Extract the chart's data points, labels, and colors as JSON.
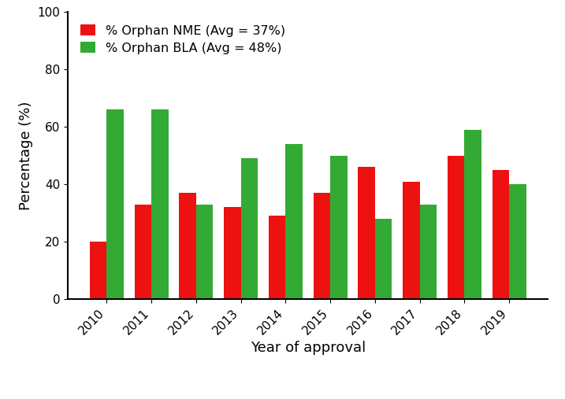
{
  "years": [
    "2010",
    "2011",
    "2012",
    "2013",
    "2014",
    "2015",
    "2016",
    "2017",
    "2018",
    "2019"
  ],
  "nme_values": [
    20,
    33,
    37,
    32,
    29,
    37,
    46,
    41,
    50,
    45
  ],
  "bla_values": [
    66,
    66,
    33,
    49,
    54,
    50,
    28,
    33,
    59,
    40
  ],
  "nme_color": "#ee1111",
  "bla_color": "#33aa33",
  "nme_label": "% Orphan NME (Avg = 37%)",
  "bla_label": "% Orphan BLA (Avg = 48%)",
  "xlabel": "Year of approval",
  "ylabel": "Percentage (%)",
  "ylim": [
    0,
    100
  ],
  "yticks": [
    0,
    20,
    40,
    60,
    80,
    100
  ],
  "bar_width": 0.38,
  "legend_fontsize": 11.5,
  "axis_label_fontsize": 13,
  "tick_fontsize": 11,
  "background_color": "#ffffff"
}
